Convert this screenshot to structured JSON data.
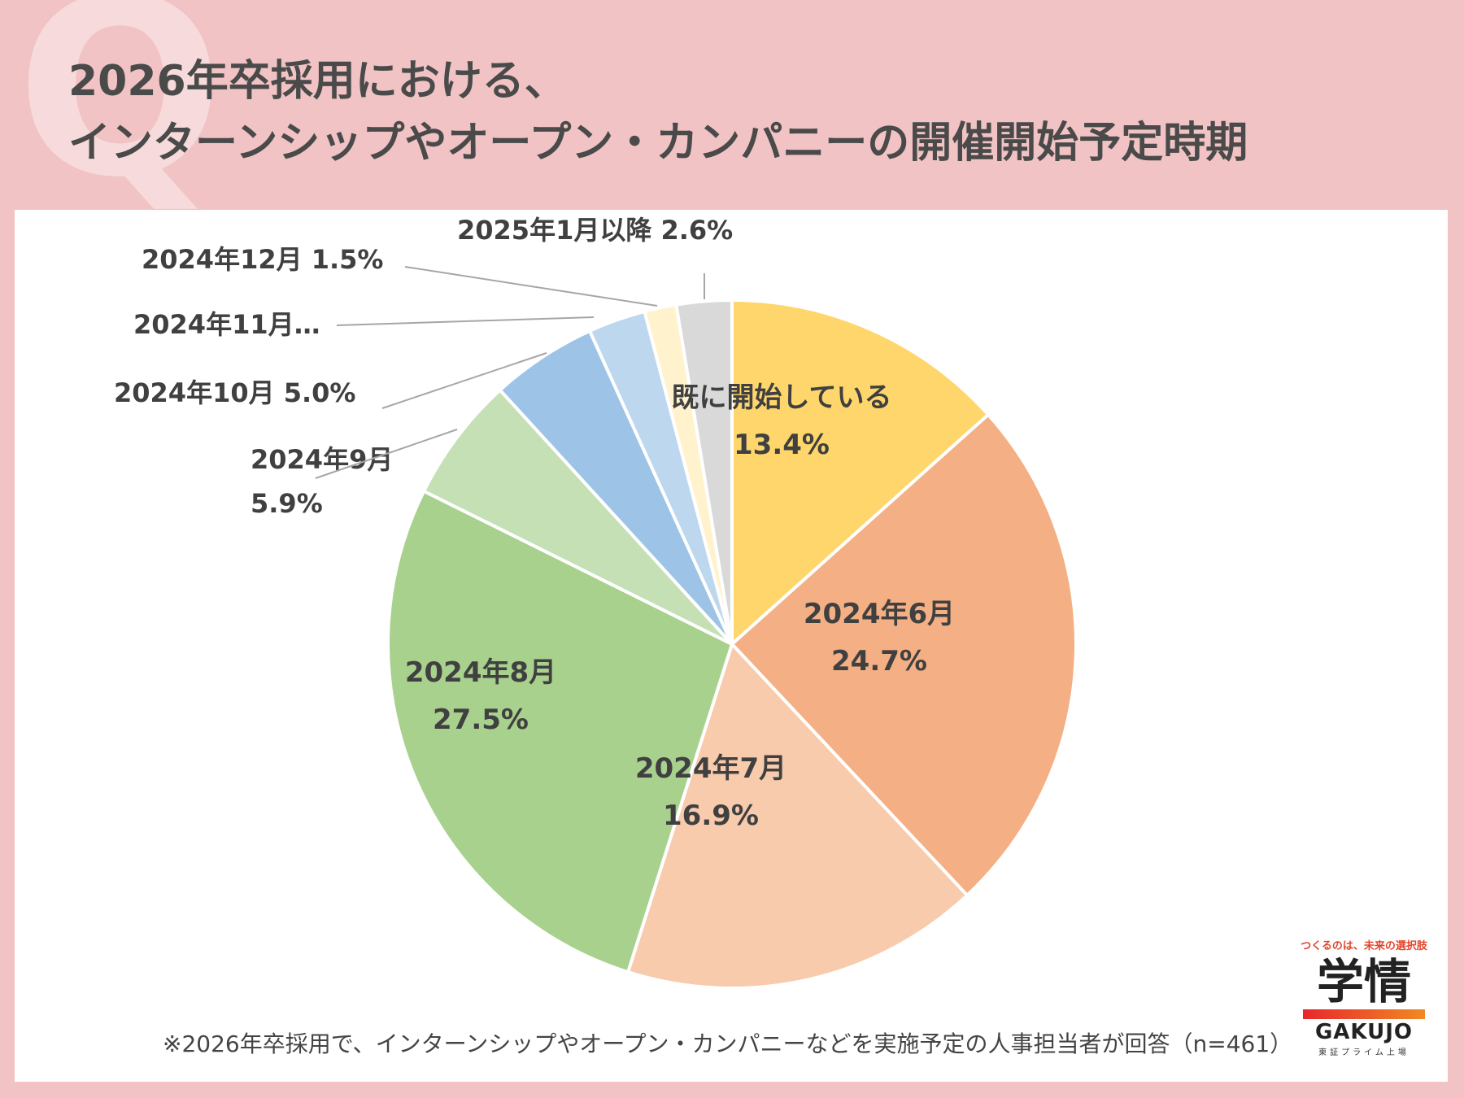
{
  "title": {
    "line1": "2026年卒採用における、",
    "line2": "インターンシップやオープン・カンパニーの開催開始予定時期"
  },
  "decoration": {
    "q_letter": "Q"
  },
  "chart_data": {
    "type": "pie",
    "title": "2026年卒採用における、インターンシップやオープン・カンパニーの開催開始予定時期",
    "start": "12 o'clock",
    "direction": "clockwise",
    "slices": [
      {
        "label": "既に開始している",
        "value": 13.4,
        "value_label": "13.4%",
        "color": "#fed66b",
        "label_place": "inside"
      },
      {
        "label": "2024年6月",
        "value": 24.7,
        "value_label": "24.7%",
        "color": "#f4b084",
        "label_place": "inside"
      },
      {
        "label": "2024年7月",
        "value": 16.9,
        "value_label": "16.9%",
        "color": "#f8cbad",
        "label_place": "inside"
      },
      {
        "label": "2024年8月",
        "value": 27.5,
        "value_label": "27.5%",
        "color": "#a9d18e",
        "label_place": "inside"
      },
      {
        "label": "2024年9月",
        "value": 5.9,
        "value_label": "5.9%",
        "color": "#c5e0b4",
        "label_place": "outside"
      },
      {
        "label": "2024年10月",
        "value": 5.0,
        "value_label": "5.0%",
        "color": "#9dc3e6",
        "label_place": "outside"
      },
      {
        "label": "2024年11月…",
        "value": 2.7,
        "value_label": "",
        "color": "#bdd7ee",
        "label_place": "outside"
      },
      {
        "label": "2024年12月",
        "value": 1.5,
        "value_label": "1.5%",
        "color": "#fff2cc",
        "label_place": "outside"
      },
      {
        "label": "2025年1月以降",
        "value": 2.6,
        "value_label": "2.6%",
        "color": "#d9d9d9",
        "label_place": "outside"
      }
    ]
  },
  "footnote": "※2026年卒採用で、インターンシップやオープン・カンパニーなどを実施予定の人事担当者が回答（n=461）",
  "logo": {
    "tagline": "つくるのは、未来の選択肢",
    "name": "学情",
    "name_en": "GAKUJO",
    "sub": "東証プライム上場",
    "bar_colors": [
      "#e8262b",
      "#f08a24"
    ]
  }
}
